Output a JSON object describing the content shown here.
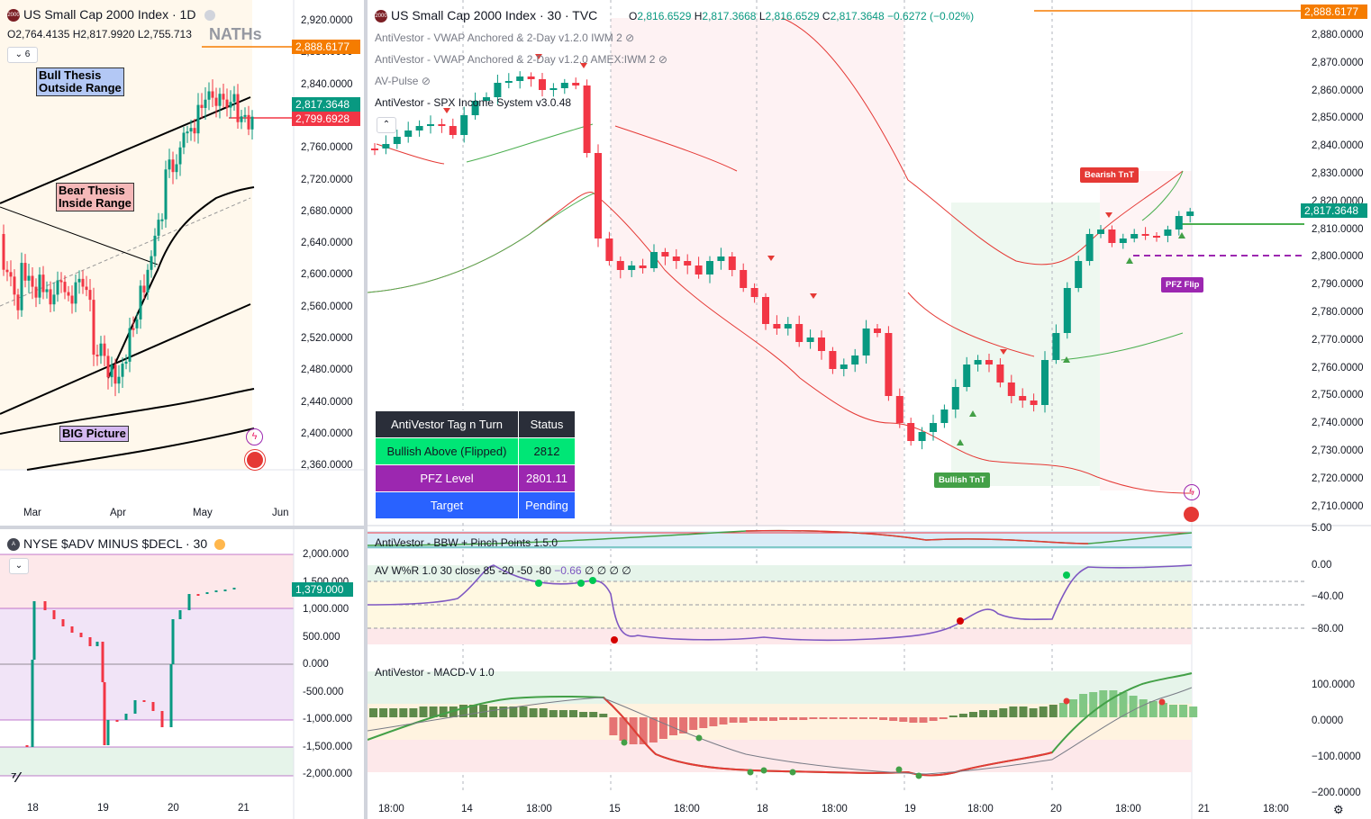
{
  "pane_daily": {
    "logo_text": "2000",
    "title": "US Small Cap 2000 Index · 1D",
    "ohlc": {
      "o_label": "O",
      "o": "2,764.4135",
      "h_label": "H",
      "h": "2,817.9920",
      "l_label": "L",
      "l": "2,755.713"
    },
    "interval_count": "6",
    "watermark": "NATHs",
    "notes": {
      "bull": "Bull Thesis\nOutside Range",
      "bear": "Bear Thesis\nInside Range",
      "big": "BIG Picture"
    },
    "price_axis": [
      "2,920.0000",
      "2,880.0000",
      "2,840.0000",
      "2,800.0000",
      "2,760.0000",
      "2,720.0000",
      "2,680.0000",
      "2,640.0000",
      "2,600.0000",
      "2,560.0000",
      "2,520.0000",
      "2,480.0000",
      "2,440.0000",
      "2,400.0000",
      "2,360.0000"
    ],
    "price_tags": {
      "orange": "2,888.6177",
      "green": "2,817.3648",
      "red": "2,799.6928"
    },
    "time_axis": [
      "Mar",
      "Apr",
      "May",
      "Jun"
    ]
  },
  "pane_adv": {
    "logo_text": "A",
    "title": "NYSE $ADV MINUS $DECL · 30",
    "price_axis": [
      "2,000.000",
      "1,500.000",
      "1,000.000",
      "500.000",
      "0.000",
      "-500.000",
      "-1,000.000",
      "-1,500.000",
      "-2,000.000"
    ],
    "price_tag": "1,379.000",
    "time_axis": [
      "18",
      "19",
      "20",
      "21"
    ]
  },
  "pane_main": {
    "logo_text": "2000",
    "title": "US Small Cap 2000 Index · 30 · TVC",
    "ohlc": {
      "o_label": "O",
      "o": "2,816.6529",
      "h_label": "H",
      "h": "2,817.3668",
      "l_label": "L",
      "l": "2,816.6529",
      "c_label": "C",
      "c": "2,817.3648",
      "chg": "−0.6272 (−0.02%)"
    },
    "indicators": [
      "AntiVestor - VWAP Anchored & 2-Day v1.2.0 IWM 2",
      "AntiVestor - VWAP Anchored & 2-Day v1.2.0 AMEX:IWM 2",
      "AV-Pulse",
      "AntiVestor - SPX Income System v3.0.48"
    ],
    "price_axis": [
      "2,880.0000",
      "2,870.0000",
      "2,860.0000",
      "2,850.0000",
      "2,840.0000",
      "2,830.0000",
      "2,820.0000",
      "2,810.0000",
      "2,800.0000",
      "2,790.0000",
      "2,780.0000",
      "2,770.0000",
      "2,760.0000",
      "2,750.0000",
      "2,740.0000",
      "2,730.0000",
      "2,720.0000",
      "2,710.0000"
    ],
    "price_tags": {
      "orange": "2,888.6177",
      "green": "2,817.3648"
    },
    "badges": {
      "bearish": "Bearish TnT",
      "bullish": "Bullish TnT",
      "pfz": "PFZ Flip"
    },
    "table": {
      "header": [
        "AntiVestor Tag n Turn",
        "Status"
      ],
      "rows": [
        [
          "Bullish Above (Flipped)",
          "2812"
        ],
        [
          "PFZ Level",
          "2801.11"
        ],
        [
          "Target",
          "Pending"
        ]
      ]
    },
    "bbw": {
      "title": "AntiVestor - BBW + Pinch Points 1.5.0",
      "axis": "5.00"
    },
    "wr": {
      "title": "AV W%R 1.0 30 close 85 -20 -50 -80",
      "value": "−0.66",
      "zeros": "∅ ∅ ∅ ∅",
      "axis": [
        "0.00",
        "−40.00",
        "−80.00"
      ]
    },
    "macd": {
      "title": "AntiVestor - MACD-V 1.0",
      "axis": [
        "100.0000",
        "0.0000",
        "−100.0000",
        "−200.0000"
      ]
    },
    "time_axis": [
      "18:00",
      "14",
      "18:00",
      "15",
      "18:00",
      "18",
      "18:00",
      "19",
      "18:00",
      "20",
      "18:00",
      "21",
      "18:00"
    ]
  },
  "colors": {
    "up": "#4caf50",
    "down": "#f23645",
    "orange": "#f57c00",
    "green_tag": "#089981",
    "red_tag": "#f23645",
    "purple": "#9c27b0"
  }
}
